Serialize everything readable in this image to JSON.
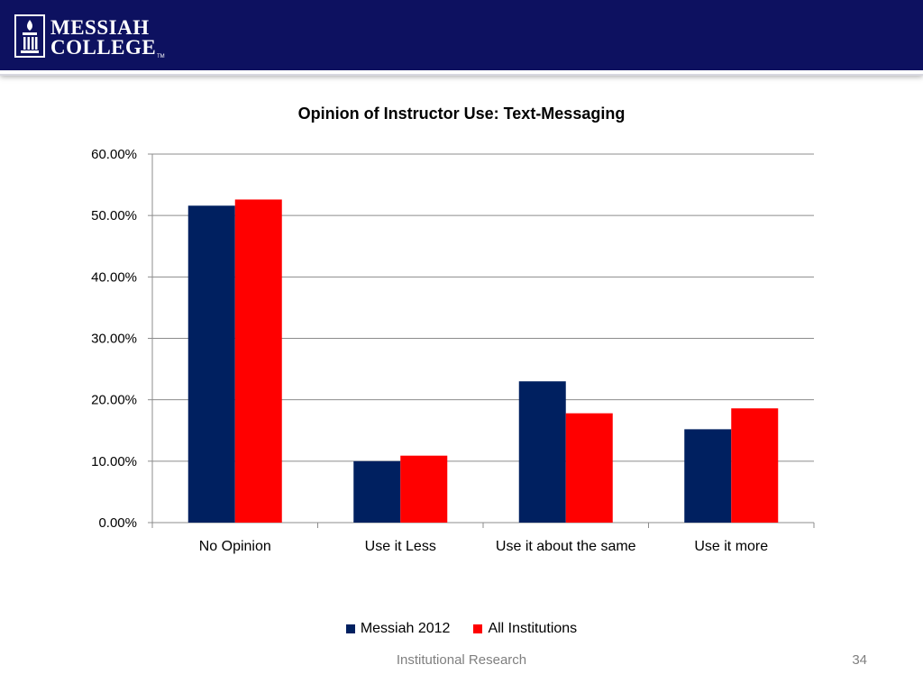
{
  "header": {
    "logo_line1": "MESSIAH",
    "logo_line2": "COLLEGE",
    "logo_tm": "TM",
    "background": "#0d1160"
  },
  "chart_data": {
    "type": "bar",
    "title": "Opinion of Instructor Use: Text-Messaging",
    "categories": [
      "No Opinion",
      "Use it Less",
      "Use it about the same",
      "Use it more"
    ],
    "series": [
      {
        "name": "Messiah 2012",
        "color": "#002060",
        "values": [
          51.6,
          10.0,
          23.0,
          15.2
        ]
      },
      {
        "name": "All Institutions",
        "color": "#ff0000",
        "values": [
          52.6,
          10.9,
          17.8,
          18.6
        ]
      }
    ],
    "ylim": [
      0,
      60
    ],
    "yticks": [
      "0.00%",
      "10.00%",
      "20.00%",
      "30.00%",
      "40.00%",
      "50.00%",
      "60.00%"
    ],
    "grid": true,
    "legend_position": "bottom",
    "xlabel": "",
    "ylabel": ""
  },
  "footer": {
    "text": "Institutional Research",
    "page_number": "34"
  }
}
